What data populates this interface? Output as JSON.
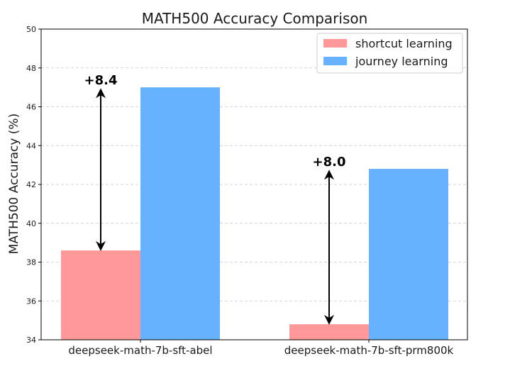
{
  "chart_data": {
    "type": "bar",
    "title": "MATH500 Accuracy Comparison",
    "xlabel": "",
    "ylabel": "MATH500 Accuracy (%)",
    "ylim": [
      34,
      50
    ],
    "yticks": [
      34,
      36,
      38,
      40,
      42,
      44,
      46,
      48,
      50
    ],
    "grid": "y-dashed",
    "legend_position": "top-right",
    "categories": [
      "deepseek-math-7b-sft-abel",
      "deepseek-math-7b-sft-prm800k"
    ],
    "series": [
      {
        "name": "shortcut learning",
        "color": "#ff9999",
        "values": [
          38.6,
          34.8
        ]
      },
      {
        "name": "journey learning",
        "color": "#66b2ff",
        "values": [
          47.0,
          42.8
        ]
      }
    ],
    "annotations": [
      {
        "text": "+8.4",
        "category": "deepseek-math-7b-sft-abel",
        "from": 38.6,
        "to": 47.0
      },
      {
        "text": "+8.0",
        "category": "deepseek-math-7b-sft-prm800k",
        "from": 34.8,
        "to": 42.8
      }
    ]
  }
}
